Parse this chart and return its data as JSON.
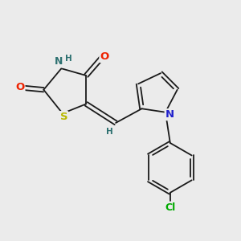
{
  "background_color": "#ebebeb",
  "bond_color": "#1a1a1a",
  "bond_width": 1.3,
  "atom_colors": {
    "S": "#b8b800",
    "N_thiazolidine": "#2d7070",
    "N_pyrrole": "#2222cc",
    "O": "#ee2200",
    "H": "#2d7070",
    "Cl": "#00aa00"
  },
  "font_size": 8.5,
  "figsize": [
    3.0,
    3.0
  ],
  "dpi": 100
}
